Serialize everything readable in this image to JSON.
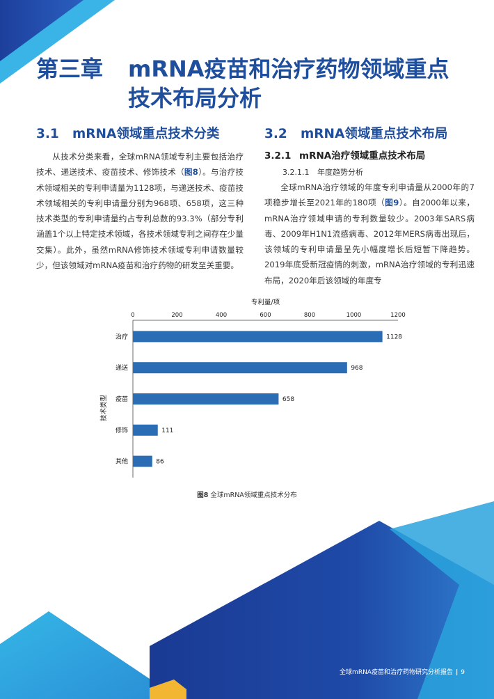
{
  "chapter": {
    "number": "第三章",
    "title_line1": "mRNA疫苗和治疗药物领域重点",
    "title_line2": "技术布局分析"
  },
  "left": {
    "section_num": "3.1",
    "section_title": "mRNA领域重点技术分类",
    "para_part1": "从技术分类来看，全球mRNA领域专利主要包括治疗技术、递送技术、疫苗技术、修饰技术（",
    "para_ref": "图8",
    "para_part2": "）。与治疗技术领域相关的专利申请量为1128项，与递送技术、疫苗技术领域相关的专利申请量分别为968项、658项，这三种技术类型的专利申请量约占专利总数的93.3%（部分专利涵盖1个以上特定技术领域，各技术领域专利之间存在少量交集）。此外，虽然mRNA修饰技术领域专利申请数量较少，但该领域对mRNA疫苗和治疗药物的研发至关重要。"
  },
  "right": {
    "section_num": "3.2",
    "section_title": "mRNA领域重点技术布局",
    "sub_num": "3.2.1",
    "sub_title": "mRNA治疗领域重点技术布局",
    "subsub_num": "3.2.1.1",
    "subsub_title": "年度趋势分析",
    "para_part1": "全球mRNA治疗领域的年度专利申请量从2000年的7项稳步增长至2021年的180项（",
    "para_ref": "图9",
    "para_part2": "）。自2000年以来，mRNA治疗领域申请的专利数量较少。2003年SARS病毒、2009年H1N1流感病毒、2012年MERS病毒出现后，该领域的专利申请量呈先小幅度增长后短暂下降趋势。2019年底受新冠疫情的刺激，mRNA治疗领域的专利迅速布局，2020年后该领域的年度专"
  },
  "chart_data": {
    "type": "bar",
    "orientation": "horizontal",
    "categories": [
      "治疗",
      "递送",
      "疫苗",
      "修饰",
      "其他"
    ],
    "values": [
      1128,
      968,
      658,
      111,
      86
    ],
    "xlabel": "专利量/项",
    "ylabel": "技术类型",
    "xlim": [
      0,
      1200
    ],
    "xticks": [
      0,
      200,
      400,
      600,
      800,
      1000,
      1200
    ],
    "bar_color": "#2a6db5",
    "axis_position": "top"
  },
  "caption": {
    "ref": "图8",
    "text": "全球mRNA领域重点技术分布"
  },
  "footer": {
    "text": "全球mRNA疫苗和治疗药物研究分析报告",
    "separator": "|",
    "page": "9"
  },
  "colors": {
    "title_blue": "#1f4e9c",
    "deco_dark": "#1a3f9a",
    "deco_mid": "#2456b0",
    "deco_light": "#2fa6dc",
    "deco_yellow": "#f2b632"
  }
}
